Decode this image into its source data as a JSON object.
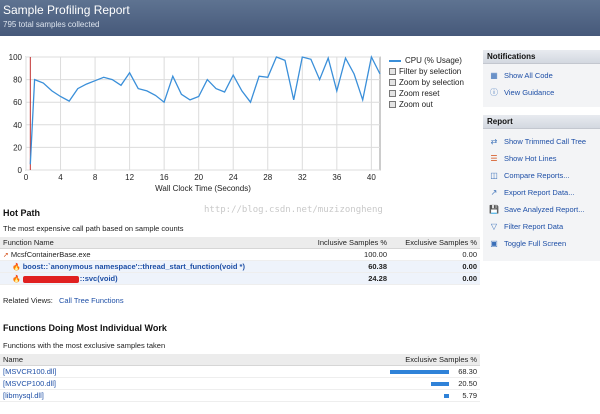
{
  "header": {
    "title": "Sample Profiling Report",
    "subtitle": "795 total samples collected"
  },
  "chart_data": {
    "type": "line",
    "xlabel": "Wall Clock Time (Seconds)",
    "ylabel": "",
    "xlim": [
      0,
      41
    ],
    "ylim": [
      0,
      100
    ],
    "x_ticks": [
      0,
      4,
      8,
      12,
      16,
      20,
      24,
      28,
      32,
      36,
      40
    ],
    "y_ticks": [
      0,
      20,
      40,
      60,
      80,
      100
    ],
    "grid": true,
    "series": [
      {
        "name": "CPU (% Usage)",
        "color": "#3a8fd9",
        "x": [
          0.5,
          1,
          2,
          3,
          4,
          5,
          6,
          7,
          8,
          9,
          10,
          11,
          12,
          13,
          14,
          15,
          16,
          17,
          18,
          19,
          20,
          21,
          22,
          23,
          24,
          25,
          26,
          27,
          28,
          29,
          30,
          31,
          32,
          33,
          34,
          35,
          36,
          37,
          38,
          39,
          40,
          41
        ],
        "y": [
          5,
          80,
          77,
          70,
          65,
          61,
          72,
          76,
          79,
          82,
          80,
          75,
          86,
          72,
          70,
          66,
          60,
          83,
          67,
          62,
          65,
          80,
          72,
          69,
          84,
          70,
          60,
          83,
          82,
          100,
          97,
          62,
          100,
          98,
          80,
          99,
          70,
          99,
          85,
          62,
          100,
          85
        ]
      }
    ]
  },
  "legend": {
    "series": "CPU (% Usage)",
    "actions": [
      "Filter by selection",
      "Zoom by selection",
      "Zoom reset",
      "Zoom out"
    ]
  },
  "hot_path": {
    "title": "Hot Path",
    "desc": "The most expensive call path based on sample counts",
    "columns": [
      "Function Name",
      "Inclusive Samples %",
      "Exclusive Samples %"
    ],
    "rows": [
      {
        "name": "McsfContainerBase.exe",
        "inclusive": "100.00",
        "exclusive": "0.00"
      },
      {
        "name": "boost::`anonymous namespace'::thread_start_function(void *)",
        "inclusive": "60.38",
        "exclusive": "0.00"
      },
      {
        "name": "::svc(void)",
        "inclusive": "24.28",
        "exclusive": "0.00"
      }
    ]
  },
  "related": {
    "label": "Related Views:",
    "link": "Call Tree Functions"
  },
  "individual": {
    "title": "Functions Doing Most Individual Work",
    "desc": "Functions with the most exclusive samples taken",
    "columns": [
      "Name",
      "Exclusive Samples %"
    ],
    "rows": [
      {
        "name": "[MSVCR100.dll]",
        "value": "68.30",
        "pct": 68.3
      },
      {
        "name": "[MSVCP100.dll]",
        "value": "20.50",
        "pct": 20.5
      },
      {
        "name": "[libmysql.dll]",
        "value": "5.79",
        "pct": 5.79
      }
    ]
  },
  "notifications": {
    "title": "Notifications",
    "items": [
      "Show All Code",
      "View Guidance"
    ]
  },
  "report": {
    "title": "Report",
    "items": [
      "Show Trimmed Call Tree",
      "Show Hot Lines",
      "Compare Reports...",
      "Export Report Data...",
      "Save Analyzed Report...",
      "Filter Report Data",
      "Toggle Full Screen"
    ]
  },
  "watermark": "http://blog.csdn.net/muzizongheng"
}
